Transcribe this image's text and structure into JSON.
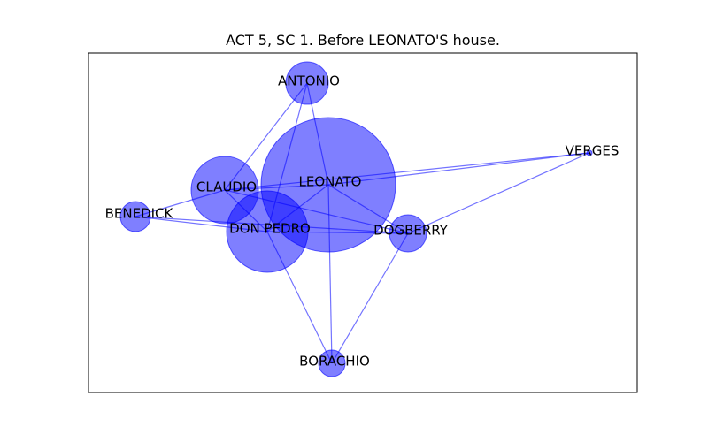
{
  "title": "ACT 5, SC 1. Before LEONATO'S house.",
  "colors": {
    "node": "#0000ff",
    "edge": "#0000ff",
    "frame": "#000000"
  },
  "nodes": [
    {
      "id": "ANTONIO",
      "label": "ANTONIO",
      "weight": 0.09
    },
    {
      "id": "VERGES",
      "label": "VERGES",
      "weight": 0.01
    },
    {
      "id": "LEONATO",
      "label": "LEONATO",
      "weight": 1.0
    },
    {
      "id": "CLAUDIO",
      "label": "CLAUDIO",
      "weight": 0.25
    },
    {
      "id": "BENEDICK",
      "label": "BENEDICK",
      "weight": 0.05
    },
    {
      "id": "DON_PEDRO",
      "label": "DON PEDRO",
      "weight": 0.36
    },
    {
      "id": "DOGBERRY",
      "label": "DOGBERRY",
      "weight": 0.08
    },
    {
      "id": "BORACHIO",
      "label": "BORACHIO",
      "weight": 0.04
    }
  ],
  "edges": [
    [
      "ANTONIO",
      "LEONATO"
    ],
    [
      "ANTONIO",
      "CLAUDIO"
    ],
    [
      "ANTONIO",
      "DON_PEDRO"
    ],
    [
      "LEONATO",
      "CLAUDIO"
    ],
    [
      "LEONATO",
      "DON_PEDRO"
    ],
    [
      "LEONATO",
      "DOGBERRY"
    ],
    [
      "LEONATO",
      "BORACHIO"
    ],
    [
      "LEONATO",
      "VERGES"
    ],
    [
      "CLAUDIO",
      "BENEDICK"
    ],
    [
      "CLAUDIO",
      "DON_PEDRO"
    ],
    [
      "CLAUDIO",
      "DOGBERRY"
    ],
    [
      "CLAUDIO",
      "VERGES"
    ],
    [
      "BENEDICK",
      "DON_PEDRO"
    ],
    [
      "BENEDICK",
      "DOGBERRY"
    ],
    [
      "DON_PEDRO",
      "DOGBERRY"
    ],
    [
      "DON_PEDRO",
      "BORACHIO"
    ],
    [
      "DOGBERRY",
      "VERGES"
    ],
    [
      "DOGBERRY",
      "BORACHIO"
    ]
  ]
}
